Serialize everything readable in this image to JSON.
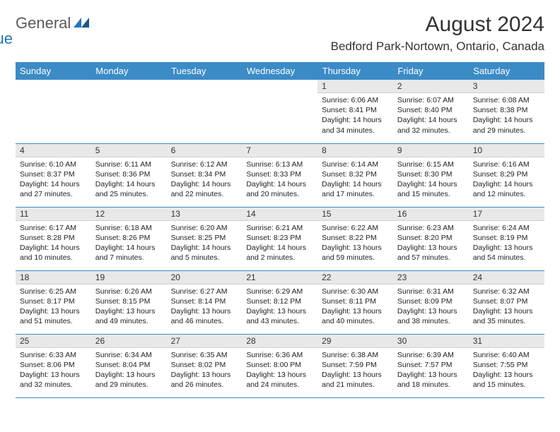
{
  "logo": {
    "text1": "General",
    "text2": "Blue"
  },
  "title": "August 2024",
  "location": "Bedford Park-Nortown, Ontario, Canada",
  "colors": {
    "header_bg": "#3b8bc7",
    "header_text": "#ffffff",
    "daynum_bg": "#e8e8e8",
    "row_border": "#3b8bc7",
    "logo_gray": "#5a5a5a",
    "logo_blue": "#2176b8"
  },
  "day_labels": [
    "Sunday",
    "Monday",
    "Tuesday",
    "Wednesday",
    "Thursday",
    "Friday",
    "Saturday"
  ],
  "weeks": [
    [
      {
        "n": "",
        "sunrise": "",
        "sunset": "",
        "daylight": ""
      },
      {
        "n": "",
        "sunrise": "",
        "sunset": "",
        "daylight": ""
      },
      {
        "n": "",
        "sunrise": "",
        "sunset": "",
        "daylight": ""
      },
      {
        "n": "",
        "sunrise": "",
        "sunset": "",
        "daylight": ""
      },
      {
        "n": "1",
        "sunrise": "Sunrise: 6:06 AM",
        "sunset": "Sunset: 8:41 PM",
        "daylight": "Daylight: 14 hours and 34 minutes."
      },
      {
        "n": "2",
        "sunrise": "Sunrise: 6:07 AM",
        "sunset": "Sunset: 8:40 PM",
        "daylight": "Daylight: 14 hours and 32 minutes."
      },
      {
        "n": "3",
        "sunrise": "Sunrise: 6:08 AM",
        "sunset": "Sunset: 8:38 PM",
        "daylight": "Daylight: 14 hours and 29 minutes."
      }
    ],
    [
      {
        "n": "4",
        "sunrise": "Sunrise: 6:10 AM",
        "sunset": "Sunset: 8:37 PM",
        "daylight": "Daylight: 14 hours and 27 minutes."
      },
      {
        "n": "5",
        "sunrise": "Sunrise: 6:11 AM",
        "sunset": "Sunset: 8:36 PM",
        "daylight": "Daylight: 14 hours and 25 minutes."
      },
      {
        "n": "6",
        "sunrise": "Sunrise: 6:12 AM",
        "sunset": "Sunset: 8:34 PM",
        "daylight": "Daylight: 14 hours and 22 minutes."
      },
      {
        "n": "7",
        "sunrise": "Sunrise: 6:13 AM",
        "sunset": "Sunset: 8:33 PM",
        "daylight": "Daylight: 14 hours and 20 minutes."
      },
      {
        "n": "8",
        "sunrise": "Sunrise: 6:14 AM",
        "sunset": "Sunset: 8:32 PM",
        "daylight": "Daylight: 14 hours and 17 minutes."
      },
      {
        "n": "9",
        "sunrise": "Sunrise: 6:15 AM",
        "sunset": "Sunset: 8:30 PM",
        "daylight": "Daylight: 14 hours and 15 minutes."
      },
      {
        "n": "10",
        "sunrise": "Sunrise: 6:16 AM",
        "sunset": "Sunset: 8:29 PM",
        "daylight": "Daylight: 14 hours and 12 minutes."
      }
    ],
    [
      {
        "n": "11",
        "sunrise": "Sunrise: 6:17 AM",
        "sunset": "Sunset: 8:28 PM",
        "daylight": "Daylight: 14 hours and 10 minutes."
      },
      {
        "n": "12",
        "sunrise": "Sunrise: 6:18 AM",
        "sunset": "Sunset: 8:26 PM",
        "daylight": "Daylight: 14 hours and 7 minutes."
      },
      {
        "n": "13",
        "sunrise": "Sunrise: 6:20 AM",
        "sunset": "Sunset: 8:25 PM",
        "daylight": "Daylight: 14 hours and 5 minutes."
      },
      {
        "n": "14",
        "sunrise": "Sunrise: 6:21 AM",
        "sunset": "Sunset: 8:23 PM",
        "daylight": "Daylight: 14 hours and 2 minutes."
      },
      {
        "n": "15",
        "sunrise": "Sunrise: 6:22 AM",
        "sunset": "Sunset: 8:22 PM",
        "daylight": "Daylight: 13 hours and 59 minutes."
      },
      {
        "n": "16",
        "sunrise": "Sunrise: 6:23 AM",
        "sunset": "Sunset: 8:20 PM",
        "daylight": "Daylight: 13 hours and 57 minutes."
      },
      {
        "n": "17",
        "sunrise": "Sunrise: 6:24 AM",
        "sunset": "Sunset: 8:19 PM",
        "daylight": "Daylight: 13 hours and 54 minutes."
      }
    ],
    [
      {
        "n": "18",
        "sunrise": "Sunrise: 6:25 AM",
        "sunset": "Sunset: 8:17 PM",
        "daylight": "Daylight: 13 hours and 51 minutes."
      },
      {
        "n": "19",
        "sunrise": "Sunrise: 6:26 AM",
        "sunset": "Sunset: 8:15 PM",
        "daylight": "Daylight: 13 hours and 49 minutes."
      },
      {
        "n": "20",
        "sunrise": "Sunrise: 6:27 AM",
        "sunset": "Sunset: 8:14 PM",
        "daylight": "Daylight: 13 hours and 46 minutes."
      },
      {
        "n": "21",
        "sunrise": "Sunrise: 6:29 AM",
        "sunset": "Sunset: 8:12 PM",
        "daylight": "Daylight: 13 hours and 43 minutes."
      },
      {
        "n": "22",
        "sunrise": "Sunrise: 6:30 AM",
        "sunset": "Sunset: 8:11 PM",
        "daylight": "Daylight: 13 hours and 40 minutes."
      },
      {
        "n": "23",
        "sunrise": "Sunrise: 6:31 AM",
        "sunset": "Sunset: 8:09 PM",
        "daylight": "Daylight: 13 hours and 38 minutes."
      },
      {
        "n": "24",
        "sunrise": "Sunrise: 6:32 AM",
        "sunset": "Sunset: 8:07 PM",
        "daylight": "Daylight: 13 hours and 35 minutes."
      }
    ],
    [
      {
        "n": "25",
        "sunrise": "Sunrise: 6:33 AM",
        "sunset": "Sunset: 8:06 PM",
        "daylight": "Daylight: 13 hours and 32 minutes."
      },
      {
        "n": "26",
        "sunrise": "Sunrise: 6:34 AM",
        "sunset": "Sunset: 8:04 PM",
        "daylight": "Daylight: 13 hours and 29 minutes."
      },
      {
        "n": "27",
        "sunrise": "Sunrise: 6:35 AM",
        "sunset": "Sunset: 8:02 PM",
        "daylight": "Daylight: 13 hours and 26 minutes."
      },
      {
        "n": "28",
        "sunrise": "Sunrise: 6:36 AM",
        "sunset": "Sunset: 8:00 PM",
        "daylight": "Daylight: 13 hours and 24 minutes."
      },
      {
        "n": "29",
        "sunrise": "Sunrise: 6:38 AM",
        "sunset": "Sunset: 7:59 PM",
        "daylight": "Daylight: 13 hours and 21 minutes."
      },
      {
        "n": "30",
        "sunrise": "Sunrise: 6:39 AM",
        "sunset": "Sunset: 7:57 PM",
        "daylight": "Daylight: 13 hours and 18 minutes."
      },
      {
        "n": "31",
        "sunrise": "Sunrise: 6:40 AM",
        "sunset": "Sunset: 7:55 PM",
        "daylight": "Daylight: 13 hours and 15 minutes."
      }
    ]
  ]
}
